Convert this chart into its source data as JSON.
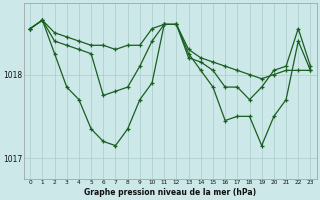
{
  "title": "Graphe pression niveau de la mer (hPa)",
  "background_color": "#cce8e8",
  "grid_color": "#aacccc",
  "line_color": "#1a5e20",
  "x_values": [
    0,
    1,
    2,
    3,
    4,
    5,
    6,
    7,
    8,
    9,
    10,
    11,
    12,
    13,
    14,
    15,
    16,
    17,
    18,
    19,
    20,
    21,
    22,
    23
  ],
  "line1": [
    1018.55,
    1018.65,
    1018.5,
    1018.45,
    1018.4,
    1018.35,
    1018.35,
    1018.3,
    1018.35,
    1018.35,
    1018.55,
    1018.6,
    1018.6,
    1018.3,
    1018.2,
    1018.15,
    1018.1,
    1018.05,
    1018.0,
    1017.95,
    1018.0,
    1018.05,
    1018.05,
    1018.05
  ],
  "line2": [
    1018.55,
    1018.65,
    1018.4,
    1018.35,
    1018.3,
    1018.25,
    1017.75,
    1017.8,
    1017.85,
    1018.1,
    1018.4,
    1018.6,
    1018.6,
    1018.2,
    1018.15,
    1018.05,
    1017.85,
    1017.85,
    1017.7,
    1017.85,
    1018.05,
    1018.1,
    1018.55,
    1018.1
  ],
  "line3": [
    1018.55,
    1018.65,
    1018.25,
    1017.85,
    1017.7,
    1017.35,
    1017.2,
    1017.15,
    1017.35,
    1017.7,
    1017.9,
    1018.6,
    1018.6,
    1018.25,
    1018.05,
    1017.85,
    1017.45,
    1017.5,
    1017.5,
    1017.15,
    1017.5,
    1017.7,
    1018.4,
    1018.05
  ],
  "ylim": [
    1016.75,
    1018.85
  ],
  "yticks": [
    1017.0,
    1018.0
  ],
  "xlim": [
    -0.5,
    23.5
  ]
}
